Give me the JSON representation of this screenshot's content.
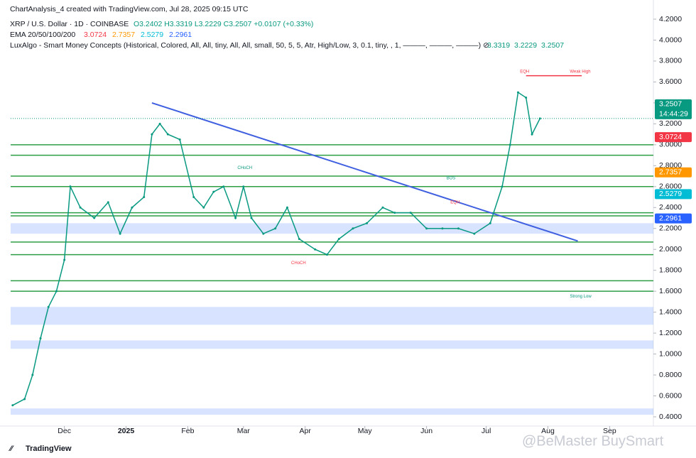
{
  "header": {
    "created": "ChartAnalysis_4 created with TradingView.com, Jul 28, 2025 09:15 UTC",
    "symbol": "XRP / U.S. Dollar · 1D · COINBASE",
    "ohlc": "O3.2402  H3.3319  L3.2229  C3.2507  +0.0107 (+0.33%)",
    "ema_label": "EMA 20/50/100/200",
    "ema_values": [
      {
        "text": "3.0724",
        "color": "#f23645"
      },
      {
        "text": "2.7357",
        "color": "#ff9800"
      },
      {
        "text": "2.5279",
        "color": "#00bcd4"
      },
      {
        "text": "2.2961",
        "color": "#2962ff"
      }
    ],
    "luxalgo": "LuxAlgo - Smart Money Concepts (Historical, Colored, All, All, tiny, All, All, small, 50, 5, 5, Atr, High/Low, 3, 0.1, tiny, , 1, ———, ———, ———)  ⊘",
    "lux_values": [
      "3.3319",
      "3.2229",
      "3.2507"
    ]
  },
  "chart_data": {
    "type": "line",
    "color": "#089981",
    "x": [
      4,
      10,
      14,
      18,
      22,
      26,
      30,
      33,
      38,
      45,
      52,
      58,
      64,
      70,
      74,
      78,
      82,
      88,
      95,
      100,
      105,
      110,
      116,
      120,
      124,
      130,
      136,
      142,
      148,
      156,
      162,
      168,
      175,
      182,
      190,
      196,
      204,
      212,
      220,
      228,
      236,
      244,
      250,
      254,
      258,
      262,
      265,
      269
    ],
    "values": [
      0.51,
      0.57,
      0.8,
      1.15,
      1.45,
      1.6,
      1.9,
      2.6,
      2.4,
      2.3,
      2.45,
      2.15,
      2.4,
      2.5,
      3.1,
      3.2,
      3.1,
      3.05,
      2.5,
      2.4,
      2.55,
      2.6,
      2.3,
      2.6,
      2.3,
      2.15,
      2.2,
      2.4,
      2.1,
      2.0,
      1.95,
      2.1,
      2.2,
      2.25,
      2.4,
      2.35,
      2.35,
      2.2,
      2.2,
      2.2,
      2.15,
      2.25,
      2.6,
      3.0,
      3.5,
      3.45,
      3.1,
      3.2507
    ],
    "xlim": [
      3,
      326
    ],
    "xticks": [
      {
        "value": 30,
        "label": "Dec"
      },
      {
        "value": 61,
        "label": "2025"
      },
      {
        "value": 92,
        "label": "Feb"
      },
      {
        "value": 120,
        "label": "Mar"
      },
      {
        "value": 151,
        "label": "Apr"
      },
      {
        "value": 181,
        "label": "May"
      },
      {
        "value": 212,
        "label": "Jun"
      },
      {
        "value": 242,
        "label": "Jul"
      },
      {
        "value": 273,
        "label": "Aug"
      },
      {
        "value": 304,
        "label": "Sep"
      }
    ],
    "ylim": [
      0.4,
      4.2
    ],
    "yticks": [
      {
        "value": 0.4,
        "label": "0.4000"
      },
      {
        "value": 0.6,
        "label": "0.6000"
      },
      {
        "value": 0.8,
        "label": "0.8000"
      },
      {
        "value": 1.0,
        "label": "1.0000"
      },
      {
        "value": 1.2,
        "label": "1.2000"
      },
      {
        "value": 1.4,
        "label": "1.4000"
      },
      {
        "value": 1.6,
        "label": "1.6000"
      },
      {
        "value": 1.8,
        "label": "1.8000"
      },
      {
        "value": 2.0,
        "label": "2.0000"
      },
      {
        "value": 2.2,
        "label": "2.2000"
      },
      {
        "value": 2.4,
        "label": "2.4000"
      },
      {
        "value": 2.6,
        "label": "2.6000"
      },
      {
        "value": 2.8,
        "label": "2.8000"
      },
      {
        "value": 3.0,
        "label": "3.0000"
      },
      {
        "value": 3.2,
        "label": "3.2000"
      },
      {
        "value": 3.4,
        "label": "3.4000"
      },
      {
        "value": 3.6,
        "label": "3.6000"
      },
      {
        "value": 3.8,
        "label": "3.8000"
      },
      {
        "value": 4.0,
        "label": "4.0000"
      },
      {
        "value": 4.2,
        "label": "4.2000"
      }
    ],
    "levels": [
      {
        "value": 3.0,
        "x": [
          3,
          326
        ],
        "color": "#2e9e44"
      },
      {
        "value": 2.9,
        "x": [
          3,
          326
        ],
        "color": "#2e9e44"
      },
      {
        "value": 2.7,
        "x": [
          3,
          326
        ],
        "color": "#2e9e44"
      },
      {
        "value": 2.6,
        "x": [
          3,
          326
        ],
        "color": "#2e9e44"
      },
      {
        "value": 2.35,
        "x": [
          3,
          326
        ],
        "color": "#2e9e44"
      },
      {
        "value": 2.32,
        "x": [
          3,
          326
        ],
        "color": "#2e9e44"
      },
      {
        "value": 2.07,
        "x": [
          3,
          326
        ],
        "color": "#2e9e44"
      },
      {
        "value": 1.95,
        "x": [
          3,
          326
        ],
        "color": "#2e9e44"
      },
      {
        "value": 1.7,
        "x": [
          3,
          326
        ],
        "color": "#2e9e44"
      },
      {
        "value": 1.6,
        "x": [
          3,
          326
        ],
        "color": "#2e9e44"
      },
      {
        "value": 3.66,
        "x": [
          262,
          290
        ],
        "color": "#f23645"
      }
    ],
    "zones": [
      [
        2.15,
        2.25
      ],
      [
        1.28,
        1.45
      ],
      [
        1.05,
        1.13
      ],
      [
        0.42,
        0.48
      ]
    ],
    "trendline": {
      "x": [
        74,
        288
      ],
      "values": [
        3.4,
        2.08
      ],
      "color": "#3f5fe0"
    },
    "annotations": [
      {
        "text": "Weak High",
        "x": 284,
        "value": 3.7,
        "color": "#f23645"
      },
      {
        "text": "Strong Low",
        "x": 284,
        "value": 1.55,
        "color": "#089981"
      },
      {
        "text": "EQH",
        "x": 259,
        "value": 3.7,
        "color": "#f23645"
      },
      {
        "text": "BOS",
        "x": 222,
        "value": 2.68,
        "color": "#089981"
      },
      {
        "text": "CHoCH",
        "x": 117,
        "value": 2.78,
        "color": "#089981"
      },
      {
        "text": "CHoCH",
        "x": 144,
        "value": 1.87,
        "color": "#f23645"
      },
      {
        "text": "EQH",
        "x": 224,
        "value": 2.45,
        "color": "#f23645"
      }
    ],
    "price_labels": [
      {
        "value": 3.2507,
        "color": "#089981"
      },
      {
        "value": 3.0724,
        "color": "#f23645"
      },
      {
        "value": 2.7357,
        "color": "#ff9800"
      },
      {
        "value": 2.5279,
        "color": "#00bcd4"
      },
      {
        "value": 2.2961,
        "color": "#2962ff"
      }
    ],
    "countdown": "14:44:29"
  },
  "footer": {
    "logo": "TradingView",
    "watermark": "@BeMaster BuySmart"
  }
}
